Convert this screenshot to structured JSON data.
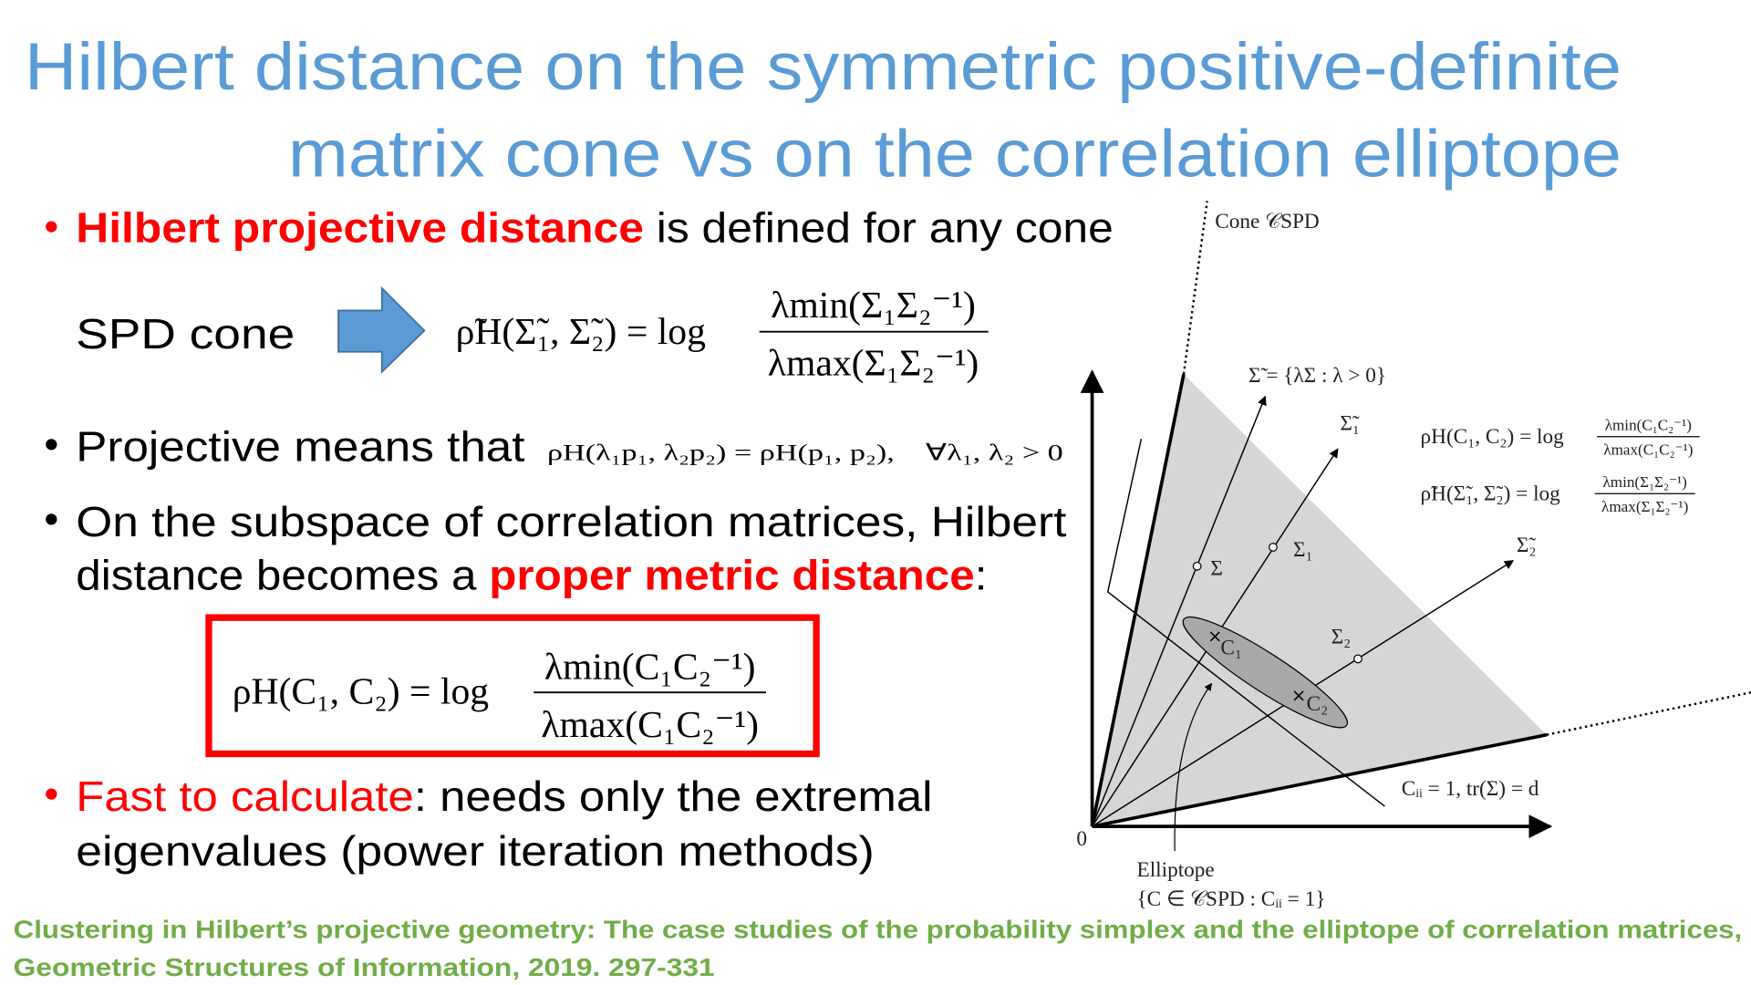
{
  "title": {
    "line1": "Hilbert distance on the symmetric positive-definite",
    "line2": "matrix cone vs on the correlation elliptope"
  },
  "bullets": [
    {
      "highlight": "Hilbert projective distance",
      "text": " is defined for any cone"
    },
    {
      "text": "Projective means that",
      "formula": "ρH(λ₁p₁, λ₂p₂) = ρH(p₁, p₂),    ∀λ₁, λ₂ > 0"
    },
    {
      "line1": "On the subspace of correlation matrices, Hilbert",
      "line2": "distance becomes a ",
      "highlight": "proper metric distance",
      "tail": ":"
    },
    {
      "highlight": "Fast to calculate",
      "text": ": needs only the extremal",
      "line2": "eigenvalues (power iteration methods)"
    }
  ],
  "spd_cone": {
    "label": "SPD cone",
    "formula": {
      "lhs": "ρ̃H(Σ̃₁, Σ̃₂) = log",
      "numerator": "λmin(Σ₁Σ₂⁻¹)",
      "denominator": "λmax(Σ₁Σ₂⁻¹)"
    }
  },
  "boxed_formula": {
    "lhs": "ρH(C₁, C₂) = log",
    "numerator": "λmin(C₁C₂⁻¹)",
    "denominator": "λmax(C₁C₂⁻¹)"
  },
  "diagram": {
    "cone_label": "Cone 𝒞SPD",
    "ray_label": "Σ̃ = {λΣ : λ > 0}",
    "ray1_label": "Σ̃₁",
    "ray2_label": "Σ̃₂",
    "sigma": "Σ",
    "sigma1": "Σ₁",
    "sigma2": "Σ₂",
    "c1": "C₁",
    "c2": "C₂",
    "hyperplane": "Cᵢᵢ = 1, tr(Σ) = d",
    "origin": "0",
    "elliptope": "Elliptope",
    "elliptope_set": "{C ∈ 𝒞SPD : Cᵢᵢ = 1}",
    "formula1": {
      "lhs": "ρH(C₁, C₂) = log",
      "numerator": "λmin(C₁C₂⁻¹)",
      "denominator": "λmax(C₁C₂⁻¹)"
    },
    "formula2": {
      "lhs": "ρ̃H(Σ̃₁, Σ̃₂) = log",
      "numerator": "λmin(Σ₁Σ₂⁻¹)",
      "denominator": "λmax(Σ₁Σ₂⁻¹)"
    }
  },
  "citation": {
    "line1": "Clustering in Hilbert’s projective geometry: The case studies of the probability simplex and the elliptope of correlation matrices,",
    "line2": "Geometric Structures of Information, 2019. 297-331"
  }
}
